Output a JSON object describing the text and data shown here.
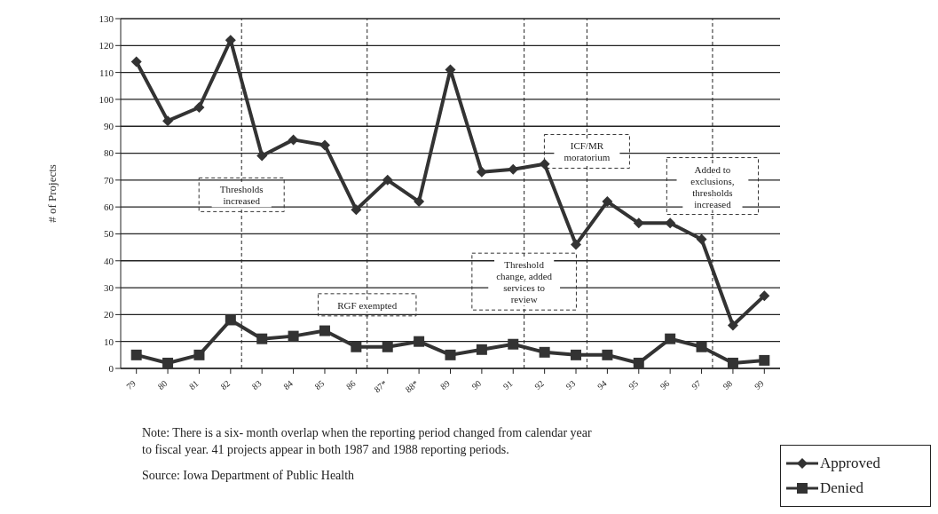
{
  "chart_data": {
    "type": "line",
    "ylabel": "# of Projects",
    "categories": [
      "79",
      "80",
      "81",
      "82",
      "83",
      "84",
      "85",
      "86",
      "87*",
      "88*",
      "89",
      "90",
      "91",
      "92",
      "93",
      "94",
      "95",
      "96",
      "97",
      "98",
      "99"
    ],
    "series": [
      {
        "name": "Approved",
        "color": "#333333",
        "marker": "diamond",
        "values": [
          114,
          92,
          97,
          122,
          79,
          85,
          83,
          59,
          70,
          62,
          111,
          73,
          74,
          76,
          46,
          62,
          54,
          54,
          48,
          16,
          27
        ]
      },
      {
        "name": "Denied",
        "color": "#333333",
        "marker": "square",
        "values": [
          5,
          2,
          5,
          18,
          11,
          12,
          14,
          8,
          8,
          10,
          5,
          7,
          9,
          6,
          5,
          5,
          2,
          11,
          8,
          2,
          3
        ]
      }
    ],
    "ylim": [
      0,
      130
    ],
    "yticks": [
      0,
      10,
      20,
      30,
      40,
      50,
      60,
      70,
      80,
      90,
      100,
      110,
      120,
      130
    ],
    "grid": "y",
    "legend": "bottom right",
    "line_style": "solid",
    "ref_lines": [
      {
        "axis": "x",
        "value": "82",
        "label": "Thresholds increased",
        "line_style": "dashed"
      },
      {
        "axis": "x",
        "value": "86",
        "label": "RGF exempted",
        "line_style": "dashed"
      },
      {
        "axis": "x",
        "value": "91",
        "label": "Threshold change, added services to review",
        "line_style": "dashed"
      },
      {
        "axis": "x",
        "value": "93",
        "label": "ICF/MR moratorium",
        "line_style": "dashed"
      },
      {
        "axis": "x",
        "value": "97",
        "label": "Added to exclusions, thresholds increased",
        "line_style": "dashed"
      }
    ],
    "annotations": [
      "Note: There is a six- month overlap when the reporting period changed from calendar year to fiscal year. 41 projects appear in both 1987 and 1988 reporting periods.",
      "Source: Iowa Department of Public Health"
    ]
  }
}
